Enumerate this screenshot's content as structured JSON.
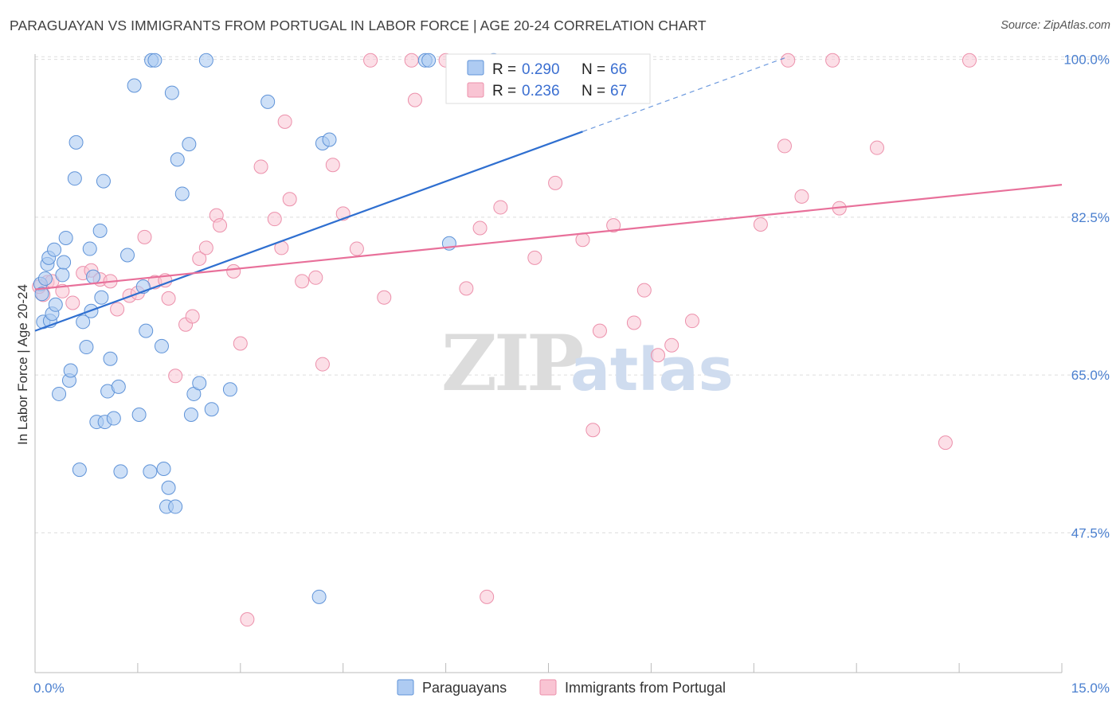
{
  "title": "PARAGUAYAN VS IMMIGRANTS FROM PORTUGAL IN LABOR FORCE | AGE 20-24 CORRELATION CHART",
  "source": "Source: ZipAtlas.com",
  "watermark": {
    "part1": "ZIP",
    "part2": "atlas"
  },
  "colors": {
    "blue_fill": "#aecbf2",
    "blue_stroke": "#5f93d8",
    "blue_line": "#2f6fd0",
    "pink_fill": "#f9c4d3",
    "pink_stroke": "#ec90ab",
    "pink_line": "#e8709a",
    "axis_text": "#4a7fcf",
    "grid": "#dddddd"
  },
  "legend_top": {
    "rows": [
      {
        "r_label": "R =",
        "r_value": "0.290",
        "n_label": "N =",
        "n_value": "66"
      },
      {
        "r_label": "R =",
        "r_value": "0.236",
        "n_label": "N =",
        "n_value": "67"
      }
    ]
  },
  "legend_bottom": {
    "series1": "Paraguayans",
    "series2": "Immigrants from Portugal"
  },
  "chart_data": {
    "type": "scatter",
    "title": "PARAGUAYAN VS IMMIGRANTS FROM PORTUGAL IN LABOR FORCE | AGE 20-24 CORRELATION CHART",
    "xlabel": "",
    "ylabel": "In Labor Force | Age 20-24",
    "xlim": [
      0,
      15
    ],
    "ylim": [
      32,
      102
    ],
    "x_tick_labels": [
      "0.0%",
      "15.0%"
    ],
    "y_ticks": [
      47.5,
      65.0,
      82.5,
      100.0
    ],
    "y_tick_labels": [
      "47.5%",
      "65.0%",
      "82.5%",
      "100.0%"
    ],
    "grid": "horizontal dashed",
    "legend_position": "top-center",
    "series": [
      {
        "name": "Paraguayans",
        "color": "#5f93d8",
        "r": 0.29,
        "n": 66,
        "trend": {
          "x": [
            0.0,
            8.0
          ],
          "y": [
            69.9,
            92.0
          ],
          "extension_x": [
            8.0,
            11.0
          ],
          "extension_y": [
            92.0,
            100.3
          ]
        },
        "points": [
          [
            0.08,
            75.1
          ],
          [
            0.1,
            74.0
          ],
          [
            0.12,
            70.9
          ],
          [
            0.15,
            75.7
          ],
          [
            0.18,
            77.3
          ],
          [
            0.2,
            78.0
          ],
          [
            0.22,
            71.0
          ],
          [
            0.25,
            71.8
          ],
          [
            0.28,
            78.9
          ],
          [
            0.3,
            72.8
          ],
          [
            0.35,
            62.9
          ],
          [
            0.4,
            76.1
          ],
          [
            0.42,
            77.5
          ],
          [
            0.45,
            80.2
          ],
          [
            0.5,
            64.4
          ],
          [
            0.52,
            65.5
          ],
          [
            0.58,
            86.8
          ],
          [
            0.6,
            90.8
          ],
          [
            0.65,
            54.5
          ],
          [
            0.7,
            70.9
          ],
          [
            0.75,
            68.1
          ],
          [
            0.8,
            79.0
          ],
          [
            0.82,
            72.1
          ],
          [
            0.85,
            75.9
          ],
          [
            0.9,
            59.8
          ],
          [
            0.95,
            81.0
          ],
          [
            0.97,
            73.6
          ],
          [
            1.0,
            86.5
          ],
          [
            1.02,
            59.8
          ],
          [
            1.06,
            63.2
          ],
          [
            1.1,
            66.8
          ],
          [
            1.15,
            60.2
          ],
          [
            1.22,
            63.7
          ],
          [
            1.25,
            54.3
          ],
          [
            1.35,
            78.3
          ],
          [
            1.45,
            97.1
          ],
          [
            1.52,
            60.6
          ],
          [
            1.58,
            74.8
          ],
          [
            1.62,
            69.9
          ],
          [
            1.68,
            54.3
          ],
          [
            1.7,
            99.9
          ],
          [
            1.75,
            99.9
          ],
          [
            1.85,
            68.2
          ],
          [
            1.88,
            54.6
          ],
          [
            1.92,
            50.4
          ],
          [
            1.95,
            52.5
          ],
          [
            2.0,
            96.3
          ],
          [
            2.05,
            50.4
          ],
          [
            2.08,
            88.9
          ],
          [
            2.15,
            85.1
          ],
          [
            2.25,
            90.6
          ],
          [
            2.28,
            60.6
          ],
          [
            2.32,
            62.9
          ],
          [
            2.4,
            64.1
          ],
          [
            2.5,
            99.9
          ],
          [
            2.58,
            61.2
          ],
          [
            2.85,
            63.4
          ],
          [
            3.4,
            95.3
          ],
          [
            4.15,
            40.4
          ],
          [
            4.2,
            90.7
          ],
          [
            4.3,
            91.1
          ],
          [
            5.7,
            99.9
          ],
          [
            5.75,
            99.9
          ],
          [
            6.05,
            79.6
          ],
          [
            6.2,
            97.7
          ],
          [
            6.7,
            99.9
          ]
        ]
      },
      {
        "name": "Immigrants from Portugal",
        "color": "#ec90ab",
        "r": 0.236,
        "n": 67,
        "trend": {
          "x": [
            0.0,
            15.0
          ],
          "y": [
            74.5,
            86.1
          ]
        },
        "points": [
          [
            0.12,
            73.9
          ],
          [
            0.18,
            75.3
          ],
          [
            0.25,
            75.4
          ],
          [
            0.4,
            74.3
          ],
          [
            0.55,
            73.0
          ],
          [
            0.7,
            76.3
          ],
          [
            0.82,
            76.6
          ],
          [
            0.95,
            75.6
          ],
          [
            1.1,
            75.4
          ],
          [
            1.2,
            72.3
          ],
          [
            1.38,
            73.8
          ],
          [
            1.5,
            74.1
          ],
          [
            1.6,
            80.3
          ],
          [
            1.75,
            75.3
          ],
          [
            1.9,
            75.5
          ],
          [
            1.95,
            73.5
          ],
          [
            2.05,
            64.9
          ],
          [
            2.2,
            70.6
          ],
          [
            2.3,
            71.5
          ],
          [
            2.4,
            77.9
          ],
          [
            2.5,
            79.1
          ],
          [
            2.65,
            82.7
          ],
          [
            2.7,
            81.6
          ],
          [
            2.9,
            76.5
          ],
          [
            3.0,
            68.5
          ],
          [
            3.1,
            37.9
          ],
          [
            3.3,
            88.1
          ],
          [
            3.5,
            82.3
          ],
          [
            3.6,
            79.1
          ],
          [
            3.65,
            93.1
          ],
          [
            3.72,
            84.5
          ],
          [
            3.9,
            75.4
          ],
          [
            4.1,
            75.8
          ],
          [
            4.2,
            66.2
          ],
          [
            4.35,
            88.3
          ],
          [
            4.5,
            82.9
          ],
          [
            4.7,
            79.0
          ],
          [
            4.9,
            99.9
          ],
          [
            5.1,
            73.6
          ],
          [
            5.5,
            99.9
          ],
          [
            5.55,
            95.5
          ],
          [
            6.0,
            99.9
          ],
          [
            6.3,
            74.6
          ],
          [
            6.5,
            81.3
          ],
          [
            6.6,
            40.4
          ],
          [
            6.8,
            83.6
          ],
          [
            7.3,
            78.0
          ],
          [
            7.6,
            86.3
          ],
          [
            8.0,
            80.0
          ],
          [
            8.15,
            58.9
          ],
          [
            8.25,
            69.9
          ],
          [
            8.45,
            81.6
          ],
          [
            8.75,
            70.8
          ],
          [
            8.9,
            74.4
          ],
          [
            9.1,
            67.2
          ],
          [
            9.3,
            68.3
          ],
          [
            9.6,
            71.0
          ],
          [
            10.6,
            81.7
          ],
          [
            10.95,
            90.4
          ],
          [
            11.0,
            99.9
          ],
          [
            11.2,
            84.8
          ],
          [
            11.65,
            99.9
          ],
          [
            11.75,
            83.5
          ],
          [
            12.3,
            90.2
          ],
          [
            13.65,
            99.9
          ],
          [
            13.3,
            57.5
          ],
          [
            0.06,
            74.8
          ]
        ]
      }
    ]
  }
}
